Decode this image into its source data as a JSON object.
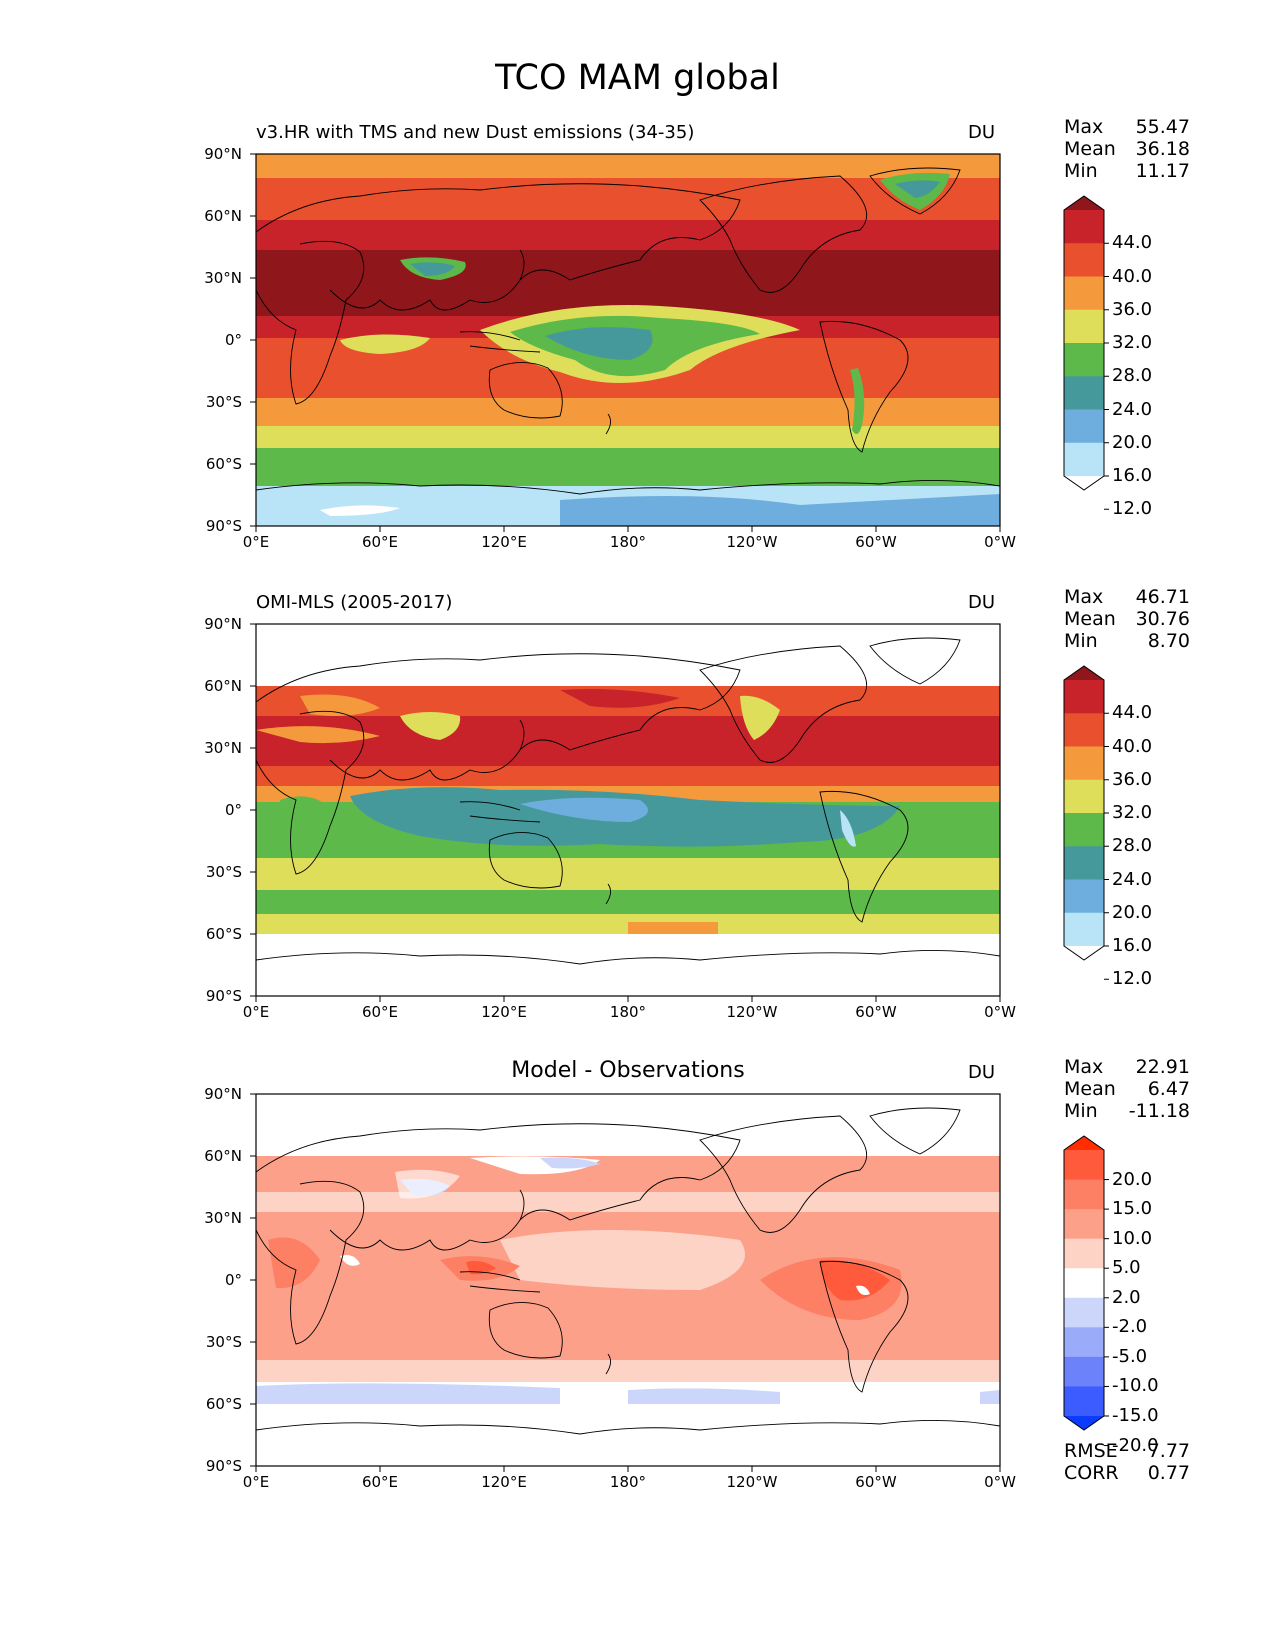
{
  "title": "TCO MAM global",
  "axes": {
    "y_ticks": [
      "90°N",
      "60°N",
      "30°N",
      "0°",
      "30°S",
      "60°S",
      "90°S"
    ],
    "x_ticks": [
      "0°E",
      "60°E",
      "120°E",
      "180°",
      "120°W",
      "60°W",
      "0°W"
    ]
  },
  "panels": [
    {
      "title": "v3.HR with TMS and new Dust emissions (34-35)",
      "title_align": "left",
      "units": "DU",
      "stats": [
        {
          "label": "Max",
          "value": "55.47"
        },
        {
          "label": "Mean",
          "value": "36.18"
        },
        {
          "label": "Min",
          "value": "11.17"
        }
      ],
      "colorbar": {
        "labels": [
          "44.0",
          "40.0",
          "36.0",
          "32.0",
          "28.0",
          "24.0",
          "20.0",
          "16.0",
          "12.0"
        ],
        "colors": [
          "#8f161b",
          "#c8232a",
          "#e8502e",
          "#f59a3c",
          "#dede5a",
          "#5cb94a",
          "#46999b",
          "#6eaede",
          "#b9e3f7",
          "#ffffff"
        ]
      }
    },
    {
      "title": "OMI-MLS (2005-2017)",
      "title_align": "left",
      "units": "DU",
      "stats": [
        {
          "label": "Max",
          "value": "46.71"
        },
        {
          "label": "Mean",
          "value": "30.76"
        },
        {
          "label": "Min",
          "value": "8.70"
        }
      ],
      "colorbar": {
        "labels": [
          "44.0",
          "40.0",
          "36.0",
          "32.0",
          "28.0",
          "24.0",
          "20.0",
          "16.0",
          "12.0"
        ],
        "colors": [
          "#8f161b",
          "#c8232a",
          "#e8502e",
          "#f59a3c",
          "#dede5a",
          "#5cb94a",
          "#46999b",
          "#6eaede",
          "#b9e3f7",
          "#ffffff"
        ]
      }
    },
    {
      "title": "Model - Observations",
      "title_align": "center",
      "units": "DU",
      "stats": [
        {
          "label": "Max",
          "value": "22.91"
        },
        {
          "label": "Mean",
          "value": "6.47"
        },
        {
          "label": "Min",
          "value": "-11.18"
        }
      ],
      "colorbar": {
        "labels": [
          "20.0",
          "15.0",
          "10.0",
          "5.0",
          "2.0",
          "-2.0",
          "-5.0",
          "-10.0",
          "-15.0",
          "-20.0"
        ],
        "colors": [
          "#ff2d00",
          "#ff5a3c",
          "#fd7f64",
          "#fca08a",
          "#fdd3c6",
          "#ffffff",
          "#ccd6fb",
          "#9aabf9",
          "#6b82fa",
          "#3d5cff",
          "#0a3bff"
        ]
      },
      "extra_stats": [
        {
          "label": "RMSE",
          "value": "7.77"
        },
        {
          "label": "CORR",
          "value": "0.77"
        }
      ]
    }
  ]
}
